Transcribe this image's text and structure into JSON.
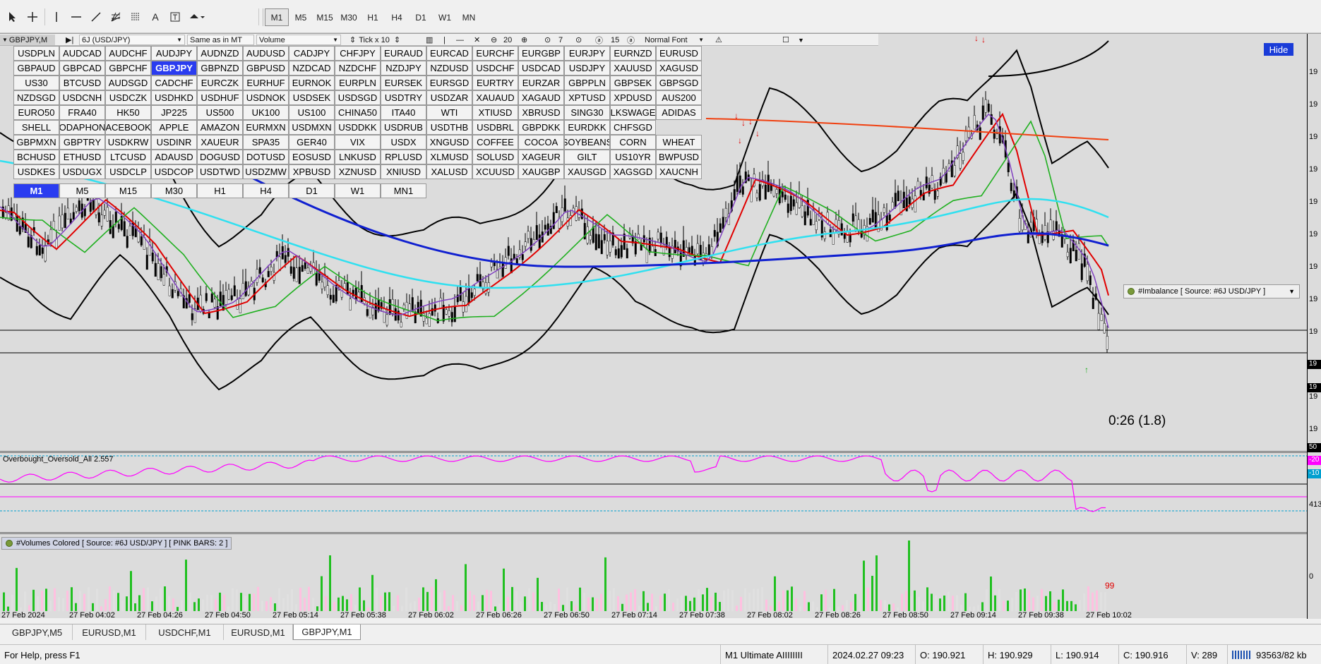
{
  "toolbar": {
    "tools": [
      "cursor-icon",
      "crosshair-icon",
      "vertical-line-icon",
      "horizontal-line-icon",
      "trendline-icon",
      "gann-icon",
      "fibonacci-icon",
      "text-icon",
      "text-label-icon",
      "arrow-icon"
    ],
    "timeframes": [
      "M1",
      "M5",
      "M15",
      "M30",
      "H1",
      "H4",
      "D1",
      "W1",
      "MN"
    ],
    "active_timeframe": "M1"
  },
  "chart": {
    "label": "GBPJPY,M",
    "controls": {
      "source": "6J (USD/JPY)",
      "same_as": "Same as in MT",
      "mode": "Volume",
      "tick": "Tick x 10",
      "spin1": "20",
      "spin2": "7",
      "spin3": "15",
      "font": "Normal Font"
    },
    "symbols": [
      [
        "USDPLN",
        "AUDCAD",
        "AUDCHF",
        "AUDJPY",
        "AUDNZD",
        "AUDUSD",
        "CADJPY",
        "CHFJPY",
        "EURAUD",
        "EURCAD",
        "EURCHF",
        "EURGBP",
        "EURJPY",
        "EURNZD",
        "EURUSD"
      ],
      [
        "GBPAUD",
        "GBPCAD",
        "GBPCHF",
        "GBPJPY",
        "GBPNZD",
        "GBPUSD",
        "NZDCAD",
        "NZDCHF",
        "NZDJPY",
        "NZDUSD",
        "USDCHF",
        "USDCAD",
        "USDJPY",
        "XAUUSD",
        "XAGUSD"
      ],
      [
        "US30",
        "BTCUSD",
        "AUDSGD",
        "CADCHF",
        "EURCZK",
        "EURHUF",
        "EURNOK",
        "EURPLN",
        "EURSEK",
        "EURSGD",
        "EURTRY",
        "EURZAR",
        "GBPPLN",
        "GBPSEK",
        "GBPSGD"
      ],
      [
        "NZDSGD",
        "USDCNH",
        "USDCZK",
        "USDHKD",
        "USDHUF",
        "USDNOK",
        "USDSEK",
        "USDSGD",
        "USDTRY",
        "USDZAR",
        "XAUAUD",
        "XAGAUD",
        "XPTUSD",
        "XPDUSD",
        "AUS200"
      ],
      [
        "EURO50",
        "FRA40",
        "HK50",
        "JP225",
        "US500",
        "UK100",
        "US100",
        "CHINA50",
        "ITA40",
        "WTI",
        "XTIUSD",
        "XBRUSD",
        "SING30",
        "LKSWAGE",
        "ADIDAS"
      ],
      [
        "SHELL",
        "ODAPHON",
        "ACEBOOK",
        "APPLE",
        "AMAZON",
        "EURMXN",
        "USDMXN",
        "USDDKK",
        "USDRUB",
        "USDTHB",
        "USDBRL",
        "GBPDKK",
        "EURDKK",
        "CHFSGD",
        ""
      ],
      [
        "GBPMXN",
        "GBPTRY",
        "USDKRW",
        "USDINR",
        "XAUEUR",
        "SPA35",
        "GER40",
        "VIX",
        "USDX",
        "XNGUSD",
        "COFFEE",
        "COCOA",
        "SOYBEANS",
        "CORN",
        "WHEAT"
      ],
      [
        "BCHUSD",
        "ETHUSD",
        "LTCUSD",
        "ADAUSD",
        "DOGUSD",
        "DOTUSD",
        "EOSUSD",
        "LNKUSD",
        "RPLUSD",
        "XLMUSD",
        "SOLUSD",
        "XAGEUR",
        "GILT",
        "US10YR",
        "BWPUSD"
      ],
      [
        "USDKES",
        "USDUGX",
        "USDCLP",
        "USDCOP",
        "USDTWD",
        "USDZMW",
        "XPBUSD",
        "XZNUSD",
        "XNIUSD",
        "XALUSD",
        "XCUUSD",
        "XAUGBP",
        "XAUSGD",
        "XAGSGD",
        "XAUCNH"
      ]
    ],
    "selected_symbol": "GBPJPY",
    "panel_timeframes": [
      "M1",
      "M5",
      "M15",
      "M30",
      "H1",
      "H4",
      "D1",
      "W1",
      "MN1"
    ],
    "selected_panel_tf": "M1",
    "hide_label": "Hide",
    "imbalance_label": "#Imbalance [ Source: #6J USD/JPY ]",
    "countdown": "0:26 (1.8)",
    "oscillator_label": "Overbought_Oversold_All 2.557",
    "osc_levels": [
      "50",
      "-20",
      "-10"
    ],
    "volumes_label": "#Volumes Colored [ Source: #6J USD/JPY ]  [ PINK BARS: 2 ]",
    "volume_value": "99",
    "vol_axis": [
      "413",
      "0"
    ],
    "price_axis_labels": [
      "19",
      "19",
      "19",
      "19",
      "19",
      "19",
      "19",
      "19",
      "19",
      "19",
      "19",
      "19"
    ],
    "time_labels": [
      "27 Feb 2024",
      "27 Feb 04:02",
      "27 Feb 04:26",
      "27 Feb 04:50",
      "27 Feb 05:14",
      "27 Feb 05:38",
      "27 Feb 06:02",
      "27 Feb 06:26",
      "27 Feb 06:50",
      "27 Feb 07:14",
      "27 Feb 07:38",
      "27 Feb 08:02",
      "27 Feb 08:26",
      "27 Feb 08:50",
      "27 Feb 09:14",
      "27 Feb 09:38",
      "27 Feb 10:02"
    ],
    "colors": {
      "ma_red": "#e00000",
      "ma_green": "#20b020",
      "ma_cyan": "#30e0f0",
      "ma_blue": "#1020d0",
      "ma_orange": "#f04010",
      "band": "#000000",
      "osc": "#ff00ff",
      "vol_green": "#20c020",
      "vol_pink": "#ff40c0",
      "accent": "#1a3cd8"
    }
  },
  "tabs": [
    "GBPJPY,M5",
    "EURUSD,M1",
    "USDCHF,M1",
    "EURUSD,M1",
    "GBPJPY,M1"
  ],
  "active_tab": "GBPJPY,M1",
  "status": {
    "help": "For Help, press F1",
    "profile": "M1 Ultimate AIIIIIIII",
    "datetime": "2024.02.27 09:23",
    "open": "O: 190.921",
    "high": "H: 190.929",
    "low": "L: 190.914",
    "close": "C: 190.916",
    "volume": "V: 289",
    "traffic": "93563/82 kb"
  }
}
